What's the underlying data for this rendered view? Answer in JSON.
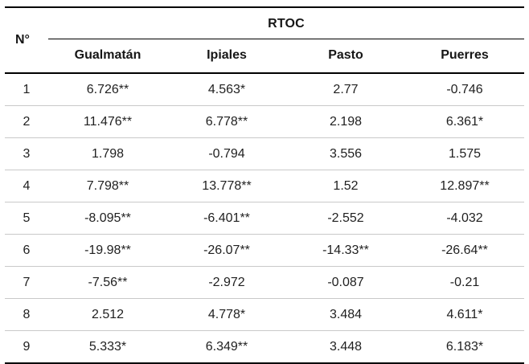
{
  "table": {
    "group_header": "RTOC",
    "row_header": "N°",
    "columns": [
      "Gualmatán",
      "Ipiales",
      "Pasto",
      "Puerres"
    ],
    "rows": [
      {
        "n": "1",
        "values": [
          "6.726**",
          "4.563*",
          "2.77",
          "-0.746"
        ]
      },
      {
        "n": "2",
        "values": [
          "11.476**",
          "6.778**",
          "2.198",
          "6.361*"
        ]
      },
      {
        "n": "3",
        "values": [
          "1.798",
          "-0.794",
          "3.556",
          "1.575"
        ]
      },
      {
        "n": "4",
        "values": [
          "7.798**",
          "13.778**",
          "1.52",
          "12.897**"
        ]
      },
      {
        "n": "5",
        "values": [
          "-8.095**",
          "-6.401**",
          "-2.552",
          "-4.032"
        ]
      },
      {
        "n": "6",
        "values": [
          "-19.98**",
          "-26.07**",
          "-14.33**",
          "-26.64**"
        ]
      },
      {
        "n": "7",
        "values": [
          "-7.56**",
          "-2.972",
          "-0.087",
          "-0.21"
        ]
      },
      {
        "n": "8",
        "values": [
          "2.512",
          "4.778*",
          "3.484",
          "4.611*"
        ]
      },
      {
        "n": "9",
        "values": [
          "5.333*",
          "6.349**",
          "3.448",
          "6.183*"
        ]
      }
    ]
  }
}
